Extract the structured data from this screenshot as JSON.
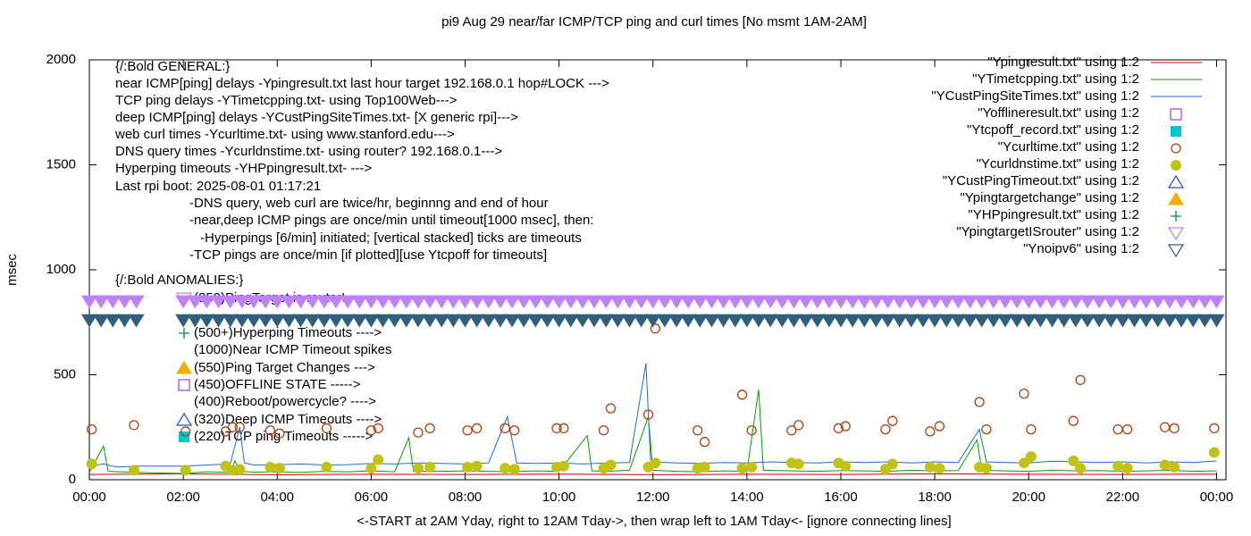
{
  "chart_data": {
    "type": "scatter",
    "title": "pi9 Aug 29  near/far ICMP/TCP ping and curl times [No msmt 1AM-2AM]",
    "y_label": "msec",
    "x_label": "<-START at 2AM Yday, right to 12AM Tday->, then wrap left to 1AM Tday<- [ignore connecting lines]",
    "xlim": [
      0,
      24.2
    ],
    "ylim": [
      0,
      2000
    ],
    "xticks": [
      {
        "value": 0,
        "label": "00:00"
      },
      {
        "value": 2,
        "label": "02:00"
      },
      {
        "value": 4,
        "label": "04:00"
      },
      {
        "value": 6,
        "label": "06:00"
      },
      {
        "value": 8,
        "label": "08:00"
      },
      {
        "value": 10,
        "label": "10:00"
      },
      {
        "value": 12,
        "label": "12:00"
      },
      {
        "value": 14,
        "label": "14:00"
      },
      {
        "value": 16,
        "label": "16:00"
      },
      {
        "value": 18,
        "label": "18:00"
      },
      {
        "value": 20,
        "label": "20:00"
      },
      {
        "value": 22,
        "label": "22:00"
      },
      {
        "value": 24,
        "label": "00:00"
      }
    ],
    "yticks": [
      0,
      500,
      1000,
      1500,
      2000
    ],
    "legend": "top-right",
    "annotations": [
      "{/:Bold GENERAL:}",
      "near ICMP[ping] delays -Ypingresult.txt last hour target 192.168.0.1 hop#LOCK --->",
      "TCP ping delays -YTimetcpping.txt- using Top100Web--->",
      "deep ICMP[ping] delays -YCustPingSiteTimes.txt- [X generic rpi]--->",
      "web curl times -Ycurltime.txt- using www.stanford.edu--->",
      "DNS query times -Ycurldnstime.txt- using router? 192.168.0.1--->",
      "Hyperping timeouts -YHPpingresult.txt- --->",
      "Last rpi boot: 2025-08-01 01:17:21",
      "-DNS query, web curl are twice/hr, beginnng and end of hour",
      "-near,deep ICMP pings are once/min until timeout[1000 msec], then:",
      "-Hyperpings [6/min] initiated; [vertical stacked] ticks are timeouts",
      "-TCP pings are once/min [if plotted][use Ytcpoff for timeouts]",
      "{/:Bold ANOMALIES:}",
      "(850)PingTarget is router!",
      "(500+)Hyperping Timeouts ---->",
      "(1000)Near ICMP Timeout spikes",
      "(550)Ping Target Changes --->",
      "(450)OFFLINE STATE ----->",
      "(400)Reboot/powercycle? ---->",
      "(320)Deep ICMP Timeouts ---->",
      "(220)TCP ping Timeouts ----->"
    ],
    "series": [
      {
        "name": "\"Ypingresult.txt\" using 1:2",
        "color": "#d40000",
        "marker": "line",
        "x": [
          0,
          2,
          4,
          6,
          8,
          10,
          12,
          14,
          16,
          18,
          20,
          22,
          24
        ],
        "values": [
          25,
          28,
          24,
          26,
          25,
          27,
          24,
          26,
          25,
          28,
          26,
          25,
          27
        ]
      },
      {
        "name": "\"YTimetcpping.txt\" using 1:2",
        "color": "#00a000",
        "marker": "line",
        "x": [
          0,
          0.3,
          0.4,
          1,
          1.5,
          2,
          2.5,
          3,
          3.1,
          3.2,
          3.5,
          4,
          4.5,
          5,
          5.5,
          6,
          6.5,
          6.8,
          6.9,
          7.5,
          8,
          8.5,
          9,
          9.5,
          10,
          10.6,
          10.7,
          11,
          11.5,
          11.9,
          12,
          12.5,
          13,
          13.5,
          14,
          14.25,
          14.35,
          15,
          15.5,
          16,
          16.5,
          17,
          17.5,
          18,
          18.5,
          18.9,
          19,
          19.5,
          20,
          20.5,
          21,
          21.5,
          22,
          22.5,
          23,
          23.5,
          24
        ],
        "values": [
          35,
          160,
          40,
          35,
          32,
          30,
          38,
          35,
          90,
          40,
          36,
          38,
          35,
          40,
          38,
          42,
          38,
          200,
          40,
          40,
          42,
          40,
          38,
          42,
          40,
          210,
          42,
          40,
          45,
          300,
          45,
          40,
          38,
          42,
          40,
          430,
          45,
          42,
          40,
          44,
          42,
          40,
          45,
          42,
          44,
          190,
          45,
          42,
          40,
          45,
          42,
          44,
          40,
          42,
          45,
          40,
          42
        ]
      },
      {
        "name": "\"YCustPingSiteTimes.txt\" using 1:2",
        "color": "#1a6cd6",
        "marker": "line",
        "x": [
          0,
          0.3,
          0.6,
          1,
          2,
          2.5,
          3,
          3.2,
          3.3,
          3.5,
          4,
          4.5,
          5,
          5.5,
          6,
          6.5,
          7,
          7.5,
          8,
          8.5,
          8.9,
          9.1,
          9.5,
          10,
          10.5,
          11,
          11.5,
          11.85,
          11.95,
          12.5,
          13,
          13.5,
          14,
          14.5,
          15,
          15.5,
          16,
          16.5,
          17,
          17.5,
          18,
          18.5,
          18.95,
          19.1,
          19.5,
          20,
          20.5,
          21,
          21.5,
          22,
          22.5,
          23,
          23.5,
          24
        ],
        "values": [
          65,
          75,
          60,
          65,
          65,
          70,
          75,
          250,
          80,
          70,
          72,
          75,
          70,
          72,
          78,
          75,
          80,
          78,
          75,
          80,
          300,
          80,
          78,
          80,
          75,
          80,
          82,
          555,
          85,
          80,
          78,
          82,
          80,
          85,
          82,
          80,
          85,
          82,
          85,
          80,
          85,
          82,
          240,
          85,
          82,
          80,
          88,
          85,
          82,
          85,
          80,
          85,
          82,
          90
        ]
      },
      {
        "name": "\"Yofflineresult.txt\" using 1:2",
        "color": "#a040e0",
        "marker": "square-open",
        "x": [],
        "values": []
      },
      {
        "name": "\"Ytcpoff_record.txt\" using 1:2",
        "color": "#00c8d0",
        "marker": "square-filled",
        "x": [],
        "values": []
      },
      {
        "name": "\"Ycurltime.txt\" using 1:2",
        "color": "#b04010",
        "marker": "circle-open",
        "x": [
          0.05,
          0.95,
          2.05,
          2.9,
          3.05,
          3.2,
          3.85,
          4.05,
          5.05,
          6,
          6.15,
          7,
          7.25,
          8.05,
          8.25,
          8.85,
          9.05,
          9.95,
          10.1,
          10.95,
          11.1,
          11.9,
          12.05,
          12.95,
          13.1,
          13.9,
          14.1,
          14.95,
          15.1,
          15.95,
          16.1,
          16.95,
          17.1,
          17.9,
          18.1,
          18.95,
          19.1,
          19.9,
          20.05,
          20.95,
          21.1,
          21.9,
          22.1,
          22.9,
          23.1,
          23.95
        ],
        "values": [
          240,
          260,
          230,
          230,
          250,
          250,
          235,
          220,
          245,
          235,
          245,
          225,
          245,
          235,
          245,
          245,
          235,
          245,
          245,
          235,
          340,
          310,
          720,
          235,
          180,
          405,
          235,
          235,
          260,
          245,
          255,
          240,
          280,
          230,
          255,
          370,
          240,
          410,
          240,
          280,
          475,
          240,
          240,
          250,
          245,
          245
        ]
      },
      {
        "name": "\"Ycurldnstime.txt\" using 1:2",
        "color": "#c2c214",
        "marker": "circle-filled",
        "x": [
          0.05,
          0.95,
          2.05,
          2.9,
          3.05,
          3.2,
          3.85,
          4.05,
          5.05,
          6,
          6.15,
          7,
          7.25,
          8.05,
          8.25,
          8.85,
          9.05,
          9.95,
          10.1,
          10.95,
          11.1,
          11.9,
          12.05,
          12.95,
          13.1,
          13.9,
          14.1,
          14.95,
          15.1,
          15.95,
          16.1,
          16.95,
          17.1,
          17.9,
          18.1,
          18.95,
          19.1,
          19.9,
          20.05,
          20.95,
          21.1,
          21.9,
          22.1,
          22.9,
          23.1,
          23.95
        ],
        "values": [
          75,
          45,
          45,
          65,
          45,
          50,
          60,
          55,
          60,
          55,
          95,
          55,
          60,
          60,
          65,
          55,
          50,
          60,
          65,
          55,
          70,
          60,
          80,
          55,
          60,
          55,
          60,
          80,
          75,
          80,
          65,
          50,
          75,
          60,
          55,
          60,
          55,
          80,
          110,
          90,
          55,
          65,
          55,
          70,
          60,
          130
        ]
      },
      {
        "name": "\"YCustPingTimeout.txt\" using 1:2",
        "color": "#2050d0",
        "marker": "triangle-up-open",
        "x": [],
        "values": []
      },
      {
        "name": "\"Ypingtargetchange\" using 1:2",
        "color": "#f0b000",
        "marker": "triangle-up-filled",
        "x": [],
        "values": []
      },
      {
        "name": "\"YHPpingresult.txt\" using 1:2",
        "color": "#00904a",
        "marker": "plus",
        "x": [],
        "values": []
      },
      {
        "name": "\"YpingtargetISrouter\" using 1:2",
        "color": "#c080ff",
        "marker": "triangle-down-open",
        "x": [
          0,
          0.25,
          0.5,
          0.75,
          1,
          2,
          2.25,
          2.5,
          2.75,
          3,
          3.25,
          3.5,
          3.75,
          4,
          4.25,
          4.5,
          4.75,
          5,
          5.25,
          5.5,
          5.75,
          6,
          6.25,
          6.5,
          6.75,
          7,
          7.25,
          7.5,
          7.75,
          8,
          8.25,
          8.5,
          8.75,
          9,
          9.25,
          9.5,
          9.75,
          10,
          10.25,
          10.5,
          10.75,
          11,
          11.25,
          11.5,
          11.75,
          12,
          12.25,
          12.5,
          12.75,
          13,
          13.25,
          13.5,
          13.75,
          14,
          14.25,
          14.5,
          14.75,
          15,
          15.25,
          15.5,
          15.75,
          16,
          16.25,
          16.5,
          16.75,
          17,
          17.25,
          17.5,
          17.75,
          18,
          18.25,
          18.5,
          18.75,
          19,
          19.25,
          19.5,
          19.75,
          20,
          20.25,
          20.5,
          20.75,
          21,
          21.25,
          21.5,
          21.75,
          22,
          22.25,
          22.5,
          22.75,
          23,
          23.25,
          23.5,
          23.75,
          24
        ],
        "values": [
          850,
          850,
          850,
          850,
          850,
          850,
          850,
          850,
          850,
          850,
          850,
          850,
          850,
          850,
          850,
          850,
          850,
          850,
          850,
          850,
          850,
          850,
          850,
          850,
          850,
          850,
          850,
          850,
          850,
          850,
          850,
          850,
          850,
          850,
          850,
          850,
          850,
          850,
          850,
          850,
          850,
          850,
          850,
          850,
          850,
          850,
          850,
          850,
          850,
          850,
          850,
          850,
          850,
          850,
          850,
          850,
          850,
          850,
          850,
          850,
          850,
          850,
          850,
          850,
          850,
          850,
          850,
          850,
          850,
          850,
          850,
          850,
          850,
          850,
          850,
          850,
          850,
          850,
          850,
          850,
          850,
          850,
          850,
          850,
          850,
          850,
          850,
          850,
          850,
          850,
          850,
          850,
          850,
          850
        ]
      },
      {
        "name": "\"Ynoipv6\" using 1:2",
        "color": "#2f5f7c",
        "marker": "triangle-down-open",
        "x": [
          0,
          0.25,
          0.5,
          0.75,
          1,
          2,
          2.25,
          2.5,
          2.75,
          3,
          3.25,
          3.5,
          3.75,
          4,
          4.25,
          4.5,
          4.75,
          5,
          5.25,
          5.5,
          5.75,
          6,
          6.25,
          6.5,
          6.75,
          7,
          7.25,
          7.5,
          7.75,
          8,
          8.25,
          8.5,
          8.75,
          9,
          9.25,
          9.5,
          9.75,
          10,
          10.25,
          10.5,
          10.75,
          11,
          11.25,
          11.5,
          11.75,
          12,
          12.25,
          12.5,
          12.75,
          13,
          13.25,
          13.5,
          13.75,
          14,
          14.25,
          14.5,
          14.75,
          15,
          15.25,
          15.5,
          15.75,
          16,
          16.25,
          16.5,
          16.75,
          17,
          17.25,
          17.5,
          17.75,
          18,
          18.25,
          18.5,
          18.75,
          19,
          19.25,
          19.5,
          19.75,
          20,
          20.25,
          20.5,
          20.75,
          21,
          21.25,
          21.5,
          21.75,
          22,
          22.25,
          22.5,
          22.75,
          23,
          23.25,
          23.5,
          23.75,
          24
        ],
        "values": [
          760,
          760,
          760,
          760,
          760,
          760,
          760,
          760,
          760,
          760,
          760,
          760,
          760,
          760,
          760,
          760,
          760,
          760,
          760,
          760,
          760,
          760,
          760,
          760,
          760,
          760,
          760,
          760,
          760,
          760,
          760,
          760,
          760,
          760,
          760,
          760,
          760,
          760,
          760,
          760,
          760,
          760,
          760,
          760,
          760,
          760,
          760,
          760,
          760,
          760,
          760,
          760,
          760,
          760,
          760,
          760,
          760,
          760,
          760,
          760,
          760,
          760,
          760,
          760,
          760,
          760,
          760,
          760,
          760,
          760,
          760,
          760,
          760,
          760,
          760,
          760,
          760,
          760,
          760,
          760,
          760,
          760,
          760,
          760,
          760,
          760,
          760,
          760,
          760,
          760,
          760,
          760,
          760,
          760
        ]
      }
    ]
  }
}
